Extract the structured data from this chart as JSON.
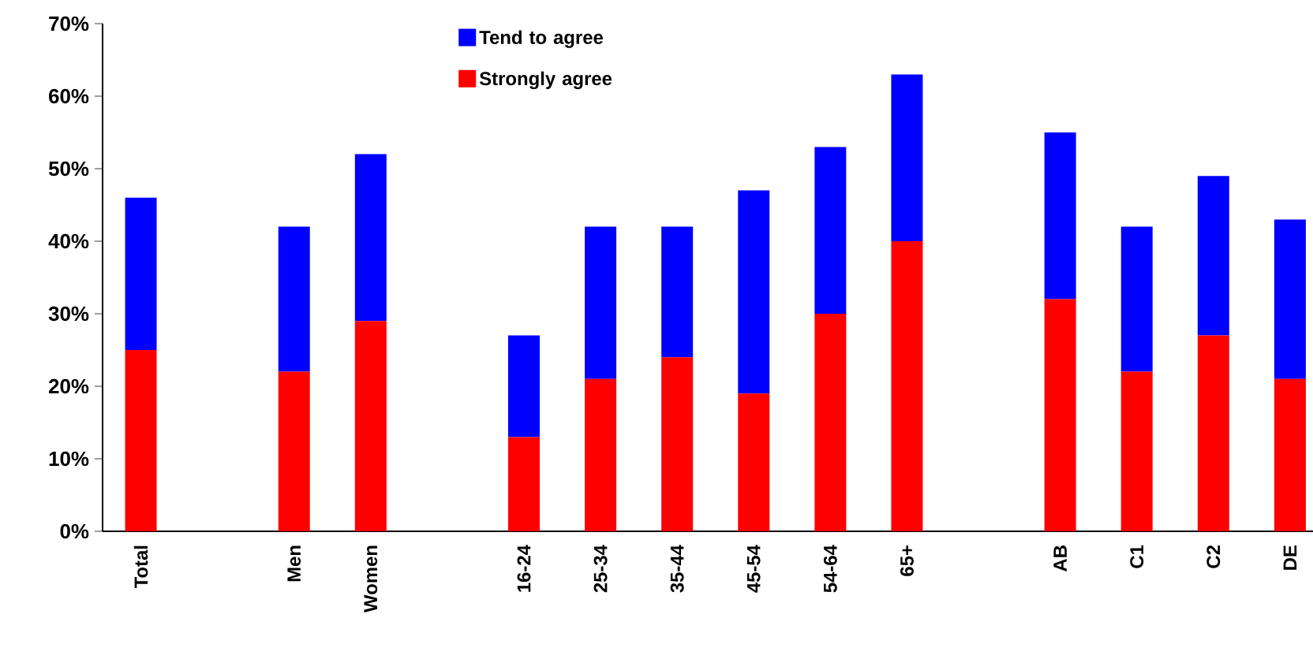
{
  "chart_data": {
    "type": "bar",
    "stacked": true,
    "categories": [
      "Total",
      null,
      "Men",
      "Women",
      null,
      "16-24",
      "25-34",
      "35-44",
      "45-54",
      "54-64",
      "65+",
      null,
      "AB",
      "C1",
      "C2",
      "DE"
    ],
    "series": [
      {
        "name": "Strongly agree",
        "color": "#ff0000",
        "values": [
          25,
          null,
          22,
          29,
          null,
          13,
          21,
          24,
          19,
          30,
          40,
          null,
          32,
          22,
          27,
          21
        ]
      },
      {
        "name": "Tend to agree",
        "color": "#0000ff",
        "values": [
          21,
          null,
          20,
          23,
          null,
          14,
          21,
          18,
          28,
          23,
          23,
          null,
          23,
          20,
          22,
          22
        ]
      }
    ],
    "ylim": [
      0,
      70
    ],
    "yticks": [
      {
        "value": 0,
        "label": "0%"
      },
      {
        "value": 10,
        "label": "10%"
      },
      {
        "value": 20,
        "label": "20%"
      },
      {
        "value": 30,
        "label": "30%"
      },
      {
        "value": 40,
        "label": "40%"
      },
      {
        "value": 50,
        "label": "50%"
      },
      {
        "value": 60,
        "label": "60%"
      },
      {
        "value": 70,
        "label": "70%"
      }
    ],
    "legend": "top"
  }
}
